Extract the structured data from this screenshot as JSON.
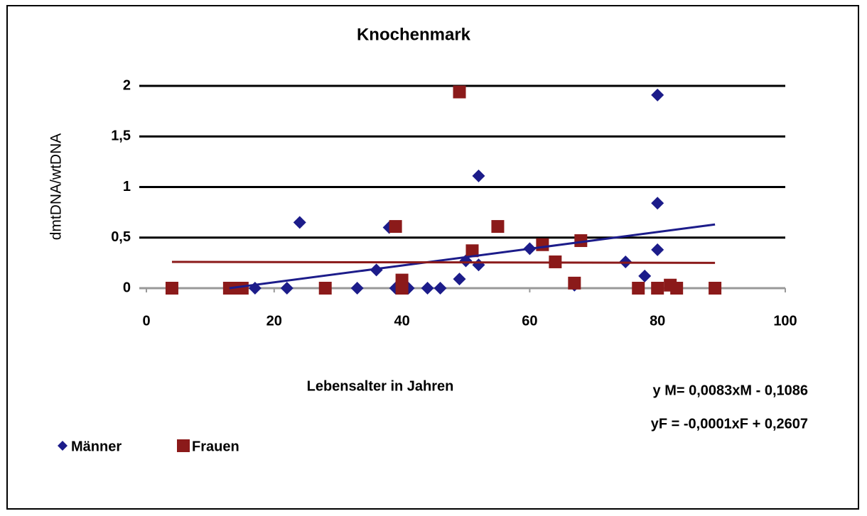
{
  "chart_data": {
    "type": "scatter",
    "title": "Knochenmark",
    "x_label": "Lebensalter in Jahren",
    "y_label": "dmtDNA/wtDNA",
    "xlim": [
      0,
      100
    ],
    "xticks": [
      0,
      20,
      40,
      60,
      80,
      100
    ],
    "ylim": [
      0,
      2
    ],
    "yticks": [
      0,
      {
        "value": 0.5,
        "label": "0,5"
      },
      1,
      {
        "value": 1.5,
        "label": "1,5"
      },
      2
    ],
    "grid": true,
    "legend": "bottom-left",
    "annotations": [
      "y M= 0,0083xM - 0,1086",
      "yF = -0,0001xF + 0,2607"
    ],
    "series": [
      {
        "name": "Männer",
        "color": "#1c1c8a",
        "marker": "diamond",
        "x": [
          17,
          22,
          24,
          33,
          36,
          38,
          39,
          40,
          41,
          44,
          46,
          49,
          50,
          52,
          52,
          60,
          67,
          75,
          78,
          80,
          80,
          80,
          80
        ],
        "values": [
          0,
          0,
          0.65,
          0,
          0.18,
          0.6,
          0,
          0,
          0,
          0,
          0,
          0.09,
          0.27,
          1.11,
          0.23,
          0.39,
          0.03,
          0.26,
          0.12,
          1.91,
          0.84,
          0.38,
          0
        ],
        "trend": {
          "x": [
            13,
            89
          ],
          "values": [
            0,
            0.63
          ]
        }
      },
      {
        "name": "Frauen",
        "color": "#8b1a1a",
        "marker": "square",
        "x": [
          4,
          13,
          14,
          15,
          28,
          39,
          40,
          40,
          49,
          51,
          55,
          62,
          64,
          67,
          68,
          77,
          80,
          82,
          83,
          89
        ],
        "values": [
          0,
          0,
          0,
          0,
          0,
          0.61,
          0.08,
          0,
          1.94,
          0.37,
          0.61,
          0.43,
          0.26,
          0.05,
          0.47,
          0,
          0,
          0.03,
          0,
          0
        ],
        "trend": {
          "x": [
            4,
            89
          ],
          "values": [
            0.26,
            0.25
          ]
        }
      }
    ]
  }
}
